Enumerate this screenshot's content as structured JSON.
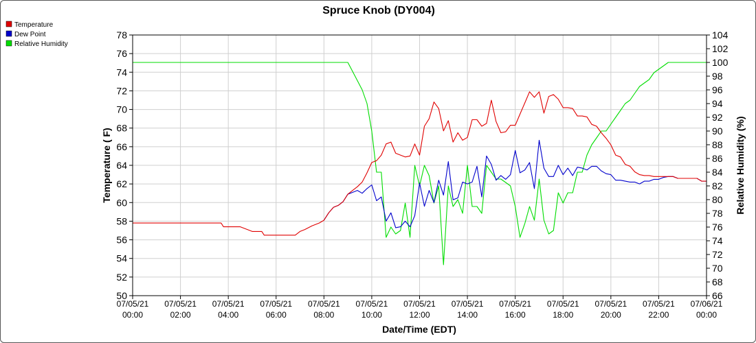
{
  "chart_data": {
    "type": "line",
    "title": "Spruce Knob (DY004)",
    "xlabel": "Date/Time (EDT)",
    "ylabel": "Temperature ( F)",
    "y2label": "Relative Humidity (%)",
    "ylim": [
      50,
      78
    ],
    "y2lim": [
      66,
      104
    ],
    "yticks": [
      50,
      52,
      54,
      56,
      58,
      60,
      62,
      64,
      66,
      68,
      70,
      72,
      74,
      76,
      78
    ],
    "y2ticks": [
      66,
      68,
      70,
      72,
      74,
      76,
      78,
      80,
      82,
      84,
      86,
      88,
      90,
      92,
      94,
      96,
      98,
      100,
      102,
      104
    ],
    "xlim": [
      0,
      24
    ],
    "xticks": [
      {
        "date": "07/05/21",
        "time": "00:00",
        "x": 0
      },
      {
        "date": "07/05/21",
        "time": "02:00",
        "x": 2
      },
      {
        "date": "07/05/21",
        "time": "04:00",
        "x": 4
      },
      {
        "date": "07/05/21",
        "time": "06:00",
        "x": 6
      },
      {
        "date": "07/05/21",
        "time": "08:00",
        "x": 8
      },
      {
        "date": "07/05/21",
        "time": "10:00",
        "x": 10
      },
      {
        "date": "07/05/21",
        "time": "12:00",
        "x": 12
      },
      {
        "date": "07/05/21",
        "time": "14:00",
        "x": 14
      },
      {
        "date": "07/05/21",
        "time": "16:00",
        "x": 16
      },
      {
        "date": "07/05/21",
        "time": "18:00",
        "x": 18
      },
      {
        "date": "07/05/21",
        "time": "20:00",
        "x": 20
      },
      {
        "date": "07/05/21",
        "time": "22:00",
        "x": 22
      },
      {
        "date": "07/06/21",
        "time": "00:00",
        "x": 24
      }
    ],
    "grid": true,
    "legend_position": "top-left",
    "series": [
      {
        "name": "Temperature",
        "color": "#e00000",
        "axis": "left",
        "x": [
          0,
          3.7,
          3.8,
          4.5,
          4.8,
          5.0,
          5.4,
          5.5,
          6.0,
          6.5,
          6.8,
          7.0,
          7.2,
          7.5,
          7.8,
          8.0,
          8.2,
          8.4,
          8.6,
          8.8,
          9.0,
          9.2,
          9.4,
          9.6,
          9.8,
          10.0,
          10.2,
          10.4,
          10.6,
          10.8,
          11.0,
          11.2,
          11.4,
          11.6,
          11.8,
          12.0,
          12.2,
          12.4,
          12.6,
          12.8,
          13.0,
          13.2,
          13.4,
          13.6,
          13.8,
          14.0,
          14.2,
          14.4,
          14.6,
          14.8,
          15.0,
          15.2,
          15.4,
          15.6,
          15.8,
          16.0,
          16.2,
          16.4,
          16.6,
          16.8,
          17.0,
          17.2,
          17.4,
          17.6,
          17.8,
          18.0,
          18.2,
          18.4,
          18.6,
          18.8,
          19.0,
          19.2,
          19.4,
          19.6,
          19.8,
          20.0,
          20.2,
          20.4,
          20.6,
          20.8,
          21.0,
          21.2,
          21.4,
          21.6,
          21.8,
          22.0,
          22.2,
          22.4,
          22.6,
          22.8,
          23.0,
          23.2,
          23.4,
          23.6,
          23.8,
          24.0
        ],
        "values": [
          57.8,
          57.8,
          57.4,
          57.4,
          57.1,
          56.9,
          56.9,
          56.5,
          56.5,
          56.5,
          56.5,
          56.9,
          57.1,
          57.5,
          57.8,
          58.1,
          58.9,
          59.5,
          59.7,
          60.1,
          60.9,
          61.3,
          61.7,
          62.2,
          63.2,
          64.3,
          64.5,
          65.1,
          66.3,
          66.5,
          65.3,
          65.1,
          64.9,
          65.0,
          66.3,
          65.1,
          68.2,
          69.0,
          70.8,
          70.1,
          67.7,
          68.8,
          66.5,
          67.5,
          66.7,
          67.0,
          68.9,
          68.9,
          68.2,
          68.5,
          71.0,
          68.7,
          67.5,
          67.6,
          68.3,
          68.3,
          69.5,
          70.7,
          71.9,
          71.3,
          71.9,
          69.6,
          71.4,
          71.6,
          71.1,
          70.2,
          70.2,
          70.1,
          69.3,
          69.3,
          69.2,
          68.4,
          68.2,
          67.5,
          66.9,
          66.2,
          65.1,
          64.9,
          64.1,
          63.9,
          63.3,
          63.0,
          62.9,
          62.9,
          62.8,
          62.8,
          62.8,
          62.8,
          62.8,
          62.6,
          62.6,
          62.6,
          62.6,
          62.6,
          62.3,
          62.3
        ]
      },
      {
        "name": "Dew Point",
        "color": "#0000cc",
        "axis": "left",
        "x": [
          8.0,
          8.2,
          8.4,
          8.6,
          8.8,
          9.0,
          9.2,
          9.4,
          9.6,
          9.8,
          10.0,
          10.2,
          10.4,
          10.6,
          10.8,
          11.0,
          11.2,
          11.4,
          11.6,
          11.8,
          12.0,
          12.2,
          12.4,
          12.6,
          12.8,
          13.0,
          13.2,
          13.4,
          13.6,
          13.8,
          14.0,
          14.2,
          14.4,
          14.6,
          14.8,
          15.0,
          15.2,
          15.4,
          15.6,
          15.8,
          16.0,
          16.2,
          16.4,
          16.6,
          16.8,
          17.0,
          17.2,
          17.4,
          17.6,
          17.8,
          18.0,
          18.2,
          18.4,
          18.6,
          18.8,
          19.0,
          19.2,
          19.4,
          19.6,
          19.8,
          20.0,
          20.2,
          20.4,
          20.6,
          20.8,
          21.0,
          21.2,
          21.4,
          21.6,
          21.8,
          22.0,
          22.2,
          22.4,
          22.6,
          22.8,
          23.0,
          23.2,
          23.4,
          23.6,
          23.8,
          24.0
        ],
        "values": [
          58.1,
          58.9,
          59.5,
          59.7,
          60.1,
          60.9,
          61.1,
          61.3,
          61.0,
          61.5,
          61.9,
          60.2,
          60.6,
          58.0,
          58.9,
          57.3,
          57.4,
          58.0,
          57.4,
          58.6,
          62.1,
          59.6,
          61.3,
          60.0,
          62.4,
          60.8,
          64.4,
          60.3,
          60.5,
          62.2,
          62.0,
          62.2,
          63.9,
          60.6,
          65.0,
          64.1,
          62.4,
          62.9,
          62.5,
          63.0,
          65.6,
          63.2,
          63.5,
          64.3,
          61.5,
          66.7,
          63.7,
          62.8,
          62.8,
          64.0,
          63.0,
          63.7,
          62.9,
          63.8,
          63.7,
          63.5,
          63.9,
          63.9,
          63.4,
          63.1,
          63.0,
          62.4,
          62.4,
          62.3,
          62.2,
          62.2,
          62.0,
          62.3,
          62.3,
          62.5,
          62.5,
          62.7,
          62.8,
          62.8,
          62.6,
          62.6,
          62.6,
          62.6,
          62.6,
          62.3,
          62.3
        ]
      },
      {
        "name": "Relative Humidity",
        "color": "#00dd00",
        "axis": "right",
        "x": [
          0,
          9.0,
          9.3,
          9.6,
          9.8,
          10.0,
          10.2,
          10.4,
          10.6,
          10.8,
          11.0,
          11.2,
          11.4,
          11.6,
          11.8,
          12.0,
          12.2,
          12.4,
          12.6,
          12.8,
          13.0,
          13.2,
          13.4,
          13.6,
          13.8,
          14.0,
          14.2,
          14.4,
          14.6,
          14.8,
          15.0,
          15.2,
          15.4,
          15.6,
          15.8,
          16.0,
          16.2,
          16.4,
          16.6,
          16.8,
          17.0,
          17.2,
          17.4,
          17.6,
          17.8,
          18.0,
          18.2,
          18.4,
          18.6,
          18.8,
          19.0,
          19.2,
          19.4,
          19.6,
          19.8,
          20.0,
          20.2,
          20.4,
          20.6,
          20.8,
          21.0,
          21.2,
          21.4,
          21.6,
          21.8,
          22.0,
          22.2,
          22.4,
          22.6,
          23.0,
          24.0
        ],
        "values": [
          100,
          100,
          98,
          96,
          94,
          90,
          84,
          84,
          74.5,
          76,
          75,
          75.5,
          79.5,
          74.5,
          85,
          82,
          85,
          83.5,
          79.5,
          82,
          70.5,
          82,
          79,
          80,
          78,
          85,
          79,
          79,
          78,
          85,
          84,
          83,
          83,
          82.5,
          82,
          79,
          74.5,
          76.5,
          79,
          77,
          83,
          77,
          75,
          75.5,
          81,
          79.5,
          81,
          81,
          84,
          84,
          86.5,
          88,
          89,
          90,
          90,
          91,
          92,
          93,
          94,
          94.5,
          95.5,
          96.5,
          97,
          97.5,
          98.5,
          99,
          99.5,
          100,
          100,
          100,
          100
        ]
      }
    ]
  }
}
